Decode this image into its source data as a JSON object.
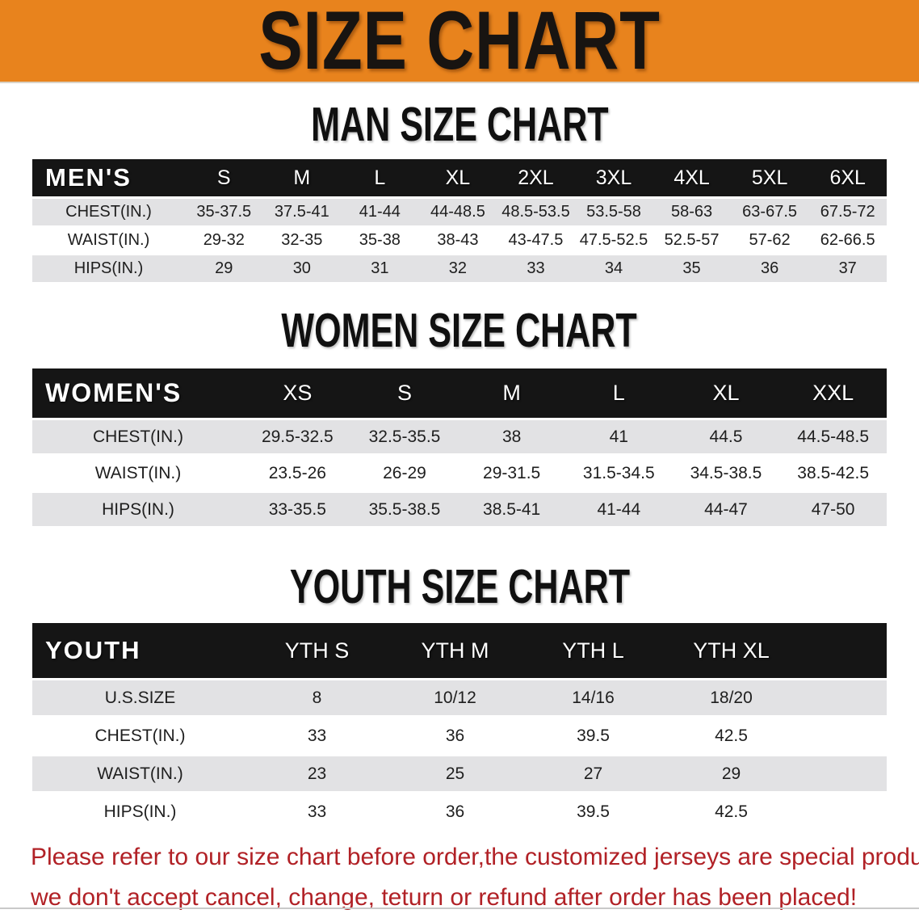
{
  "banner": {
    "title": "SIZE CHART"
  },
  "colors": {
    "banner_orange": "#E8831D",
    "header_black": "#151515",
    "stripe_gray": "#E2E2E4",
    "disclaimer_red": "#B12126"
  },
  "sections": {
    "men": {
      "heading": "MAN SIZE CHART",
      "table": {
        "header": [
          "MEN'S",
          "S",
          "M",
          "L",
          "XL",
          "2XL",
          "3XL",
          "4XL",
          "5XL",
          "6XL"
        ],
        "rows": [
          [
            "CHEST(IN.)",
            "35-37.5",
            "37.5-41",
            "41-44",
            "44-48.5",
            "48.5-53.5",
            "53.5-58",
            "58-63",
            "63-67.5",
            "67.5-72"
          ],
          [
            "WAIST(IN.)",
            "29-32",
            "32-35",
            "35-38",
            "38-43",
            "43-47.5",
            "47.5-52.5",
            "52.5-57",
            "57-62",
            "62-66.5"
          ],
          [
            "HIPS(IN.)",
            "29",
            "30",
            "31",
            "32",
            "33",
            "34",
            "35",
            "36",
            "37"
          ]
        ]
      }
    },
    "women": {
      "heading": "WOMEN SIZE CHART",
      "table": {
        "header": [
          "WOMEN'S",
          "XS",
          "S",
          "M",
          "L",
          "XL",
          "XXL"
        ],
        "rows": [
          [
            "CHEST(IN.)",
            "29.5-32.5",
            "32.5-35.5",
            "38",
            "41",
            "44.5",
            "44.5-48.5"
          ],
          [
            "WAIST(IN.)",
            "23.5-26",
            "26-29",
            "29-31.5",
            "31.5-34.5",
            "34.5-38.5",
            "38.5-42.5"
          ],
          [
            "HIPS(IN.)",
            "33-35.5",
            "35.5-38.5",
            "38.5-41",
            "41-44",
            "44-47",
            "47-50"
          ]
        ]
      }
    },
    "youth": {
      "heading": "YOUTH SIZE CHART",
      "table": {
        "header": [
          "YOUTH",
          "YTH S",
          "YTH M",
          "YTH L",
          "YTH XL"
        ],
        "rows": [
          [
            "U.S.SIZE",
            "8",
            "10/12",
            "14/16",
            "18/20"
          ],
          [
            "CHEST(IN.)",
            "33",
            "36",
            "39.5",
            "42.5"
          ],
          [
            "WAIST(IN.)",
            "23",
            "25",
            "27",
            "29"
          ],
          [
            "HIPS(IN.)",
            "33",
            "36",
            "39.5",
            "42.5"
          ]
        ]
      }
    }
  },
  "disclaimer": {
    "line1": "Please refer to our size chart before order,the customized jerseys are special products,",
    "line2": "we don't accept cancel, change, teturn or refund after order has been placed!"
  }
}
